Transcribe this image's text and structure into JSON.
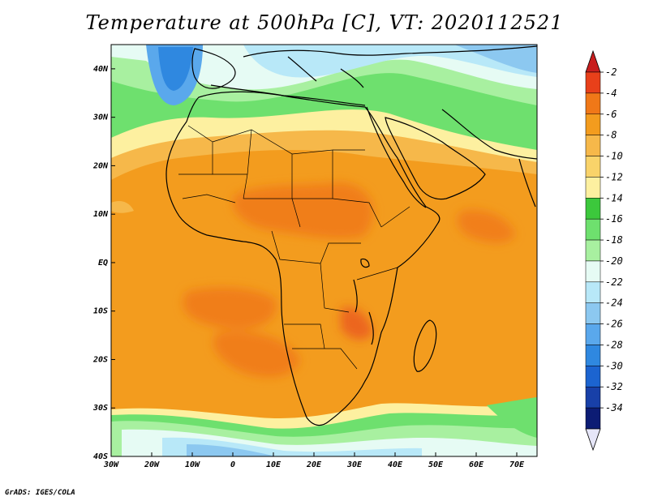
{
  "title": "Temperature at 500hPa [C], VT: 2020112521",
  "credit": "GrADS: IGES/COLA",
  "map": {
    "lon_range": [
      -30,
      75
    ],
    "lat_range": [
      -40,
      45
    ],
    "x_ticks": [
      "30W",
      "20W",
      "10W",
      "0",
      "10E",
      "20E",
      "30E",
      "40E",
      "50E",
      "60E",
      "70E"
    ],
    "y_ticks": [
      "40N",
      "30N",
      "20N",
      "10N",
      "EQ",
      "10S",
      "20S",
      "30S",
      "40S"
    ]
  },
  "colorbar": {
    "labels": [
      "-2",
      "-4",
      "-6",
      "-8",
      "-10",
      "-12",
      "-14",
      "-16",
      "-18",
      "-20",
      "-22",
      "-24",
      "-26",
      "-28",
      "-30",
      "-32",
      "-34"
    ],
    "colors": [
      "#e8401a",
      "#f07818",
      "#f39c1e",
      "#f6b84a",
      "#f9d36a",
      "#fdf0a0",
      "#3cc83c",
      "#6ee06e",
      "#a8f0a0",
      "#e6fbf4",
      "#b8e8f8",
      "#8cc8f0",
      "#5aa8ec",
      "#2f88e0",
      "#1c64d0",
      "#1840a8",
      "#0c1c74"
    ],
    "top_color": "#c81e1e",
    "bottom_color": "#e6e6f8"
  }
}
